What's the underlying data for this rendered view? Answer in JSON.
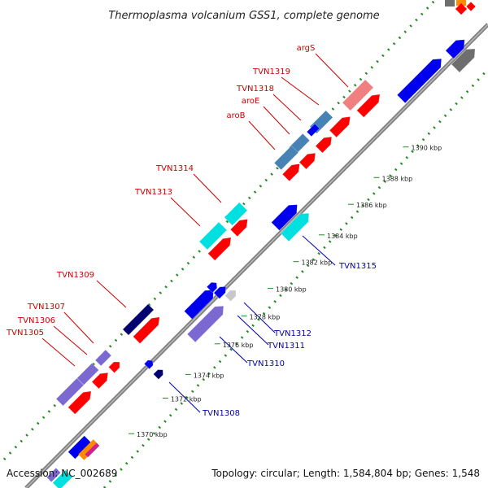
{
  "title": "Thermoplasma volcanium GSS1, complete genome",
  "accession": "Accession: NC_002689",
  "summary": "Topology: circular; Length: 1,584,804 bp; Genes: 1,548",
  "colors": {
    "red": "#ff0000",
    "blue": "#0000ee",
    "navy": "#000070",
    "cyan": "#00e0e0",
    "purple": "#7b68d0",
    "steel": "#4682b4",
    "pink": "#f08080",
    "gray": "#6e6e6e",
    "lightgray": "#c8c8c8",
    "backbone": "#808080",
    "dots": "#228b22",
    "label_red": "#cc0000",
    "label_blue": "#0000aa"
  },
  "kbp_ticks": [
    {
      "text": "1370 kbp",
      "pos": 0.04
    },
    {
      "text": "1372 kbp",
      "pos": 0.133
    },
    {
      "text": "1374 kbp",
      "pos": 0.195
    },
    {
      "text": "1376 kbp",
      "pos": 0.275
    },
    {
      "text": "1378 kbp",
      "pos": 0.348
    },
    {
      "text": "1380 kbp",
      "pos": 0.42
    },
    {
      "text": "1382 kbp",
      "pos": 0.49
    },
    {
      "text": "1384 kbp",
      "pos": 0.56
    },
    {
      "text": "1386 kbp",
      "pos": 0.64
    },
    {
      "text": "1388 kbp",
      "pos": 0.71
    },
    {
      "text": "1390 kbp",
      "pos": 0.79
    }
  ],
  "labels_red": [
    {
      "text": "argS"
    },
    {
      "text": "TVN1319"
    },
    {
      "text": "TVN1318"
    },
    {
      "text": "aroE"
    },
    {
      "text": "aroB"
    },
    {
      "text": "TVN1314"
    },
    {
      "text": "TVN1313"
    },
    {
      "text": "TVN1309"
    },
    {
      "text": "TVN1307"
    },
    {
      "text": "TVN1306"
    },
    {
      "text": "TVN1305"
    }
  ],
  "labels_blue": [
    {
      "text": "TVN1315"
    },
    {
      "text": "TVN1312"
    },
    {
      "text": "TVN1311"
    },
    {
      "text": "TVN1310"
    },
    {
      "text": "TVN1308"
    }
  ]
}
